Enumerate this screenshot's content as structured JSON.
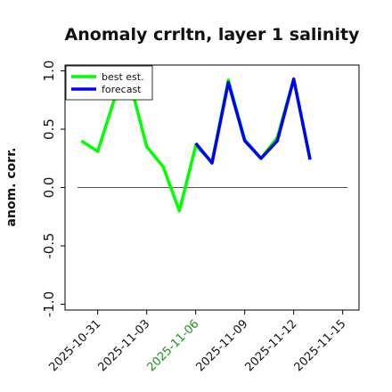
{
  "chart_data": {
    "type": "line",
    "title": "Anomaly crrltn, layer 1 salinity",
    "xlabel": "",
    "ylabel": "anom. corr.",
    "ylim": [
      -1.05,
      1.05
    ],
    "y_ticks": [
      1.0,
      0.5,
      0.0,
      -0.5,
      -1.0
    ],
    "y_tick_labels": [
      "1.0",
      "0.5",
      "0.0",
      "-0.5",
      "-1.0"
    ],
    "x_range": [
      "2025-10-29",
      "2025-11-16"
    ],
    "x_ticks": [
      "2025-10-31",
      "2025-11-03",
      "2025-11-06",
      "2025-11-09",
      "2025-11-12",
      "2025-11-15"
    ],
    "highlighted_tick": "2025-11-06",
    "reference_line": 0.0,
    "legend_placement": "top-left",
    "series": [
      {
        "name": "best est.",
        "color": "#00ff00",
        "x": [
          "2025-10-30",
          "2025-10-31",
          "2025-11-01",
          "2025-11-02",
          "2025-11-03",
          "2025-11-04",
          "2025-11-05",
          "2025-11-06",
          "2025-11-07",
          "2025-11-08",
          "2025-11-09",
          "2025-11-10",
          "2025-11-11",
          "2025-11-12",
          "2025-11-13"
        ],
        "values": [
          0.4,
          0.31,
          0.75,
          0.89,
          0.35,
          0.18,
          -0.2,
          0.36,
          0.22,
          0.92,
          0.41,
          0.25,
          0.43,
          0.93,
          0.25
        ]
      },
      {
        "name": "forecast",
        "color": "#0000ff",
        "x": [
          "2025-11-06",
          "2025-11-07",
          "2025-11-08",
          "2025-11-09",
          "2025-11-10",
          "2025-11-11",
          "2025-11-12",
          "2025-11-13"
        ],
        "values": [
          0.38,
          0.21,
          0.9,
          0.4,
          0.25,
          0.4,
          0.93,
          0.24
        ]
      }
    ]
  }
}
